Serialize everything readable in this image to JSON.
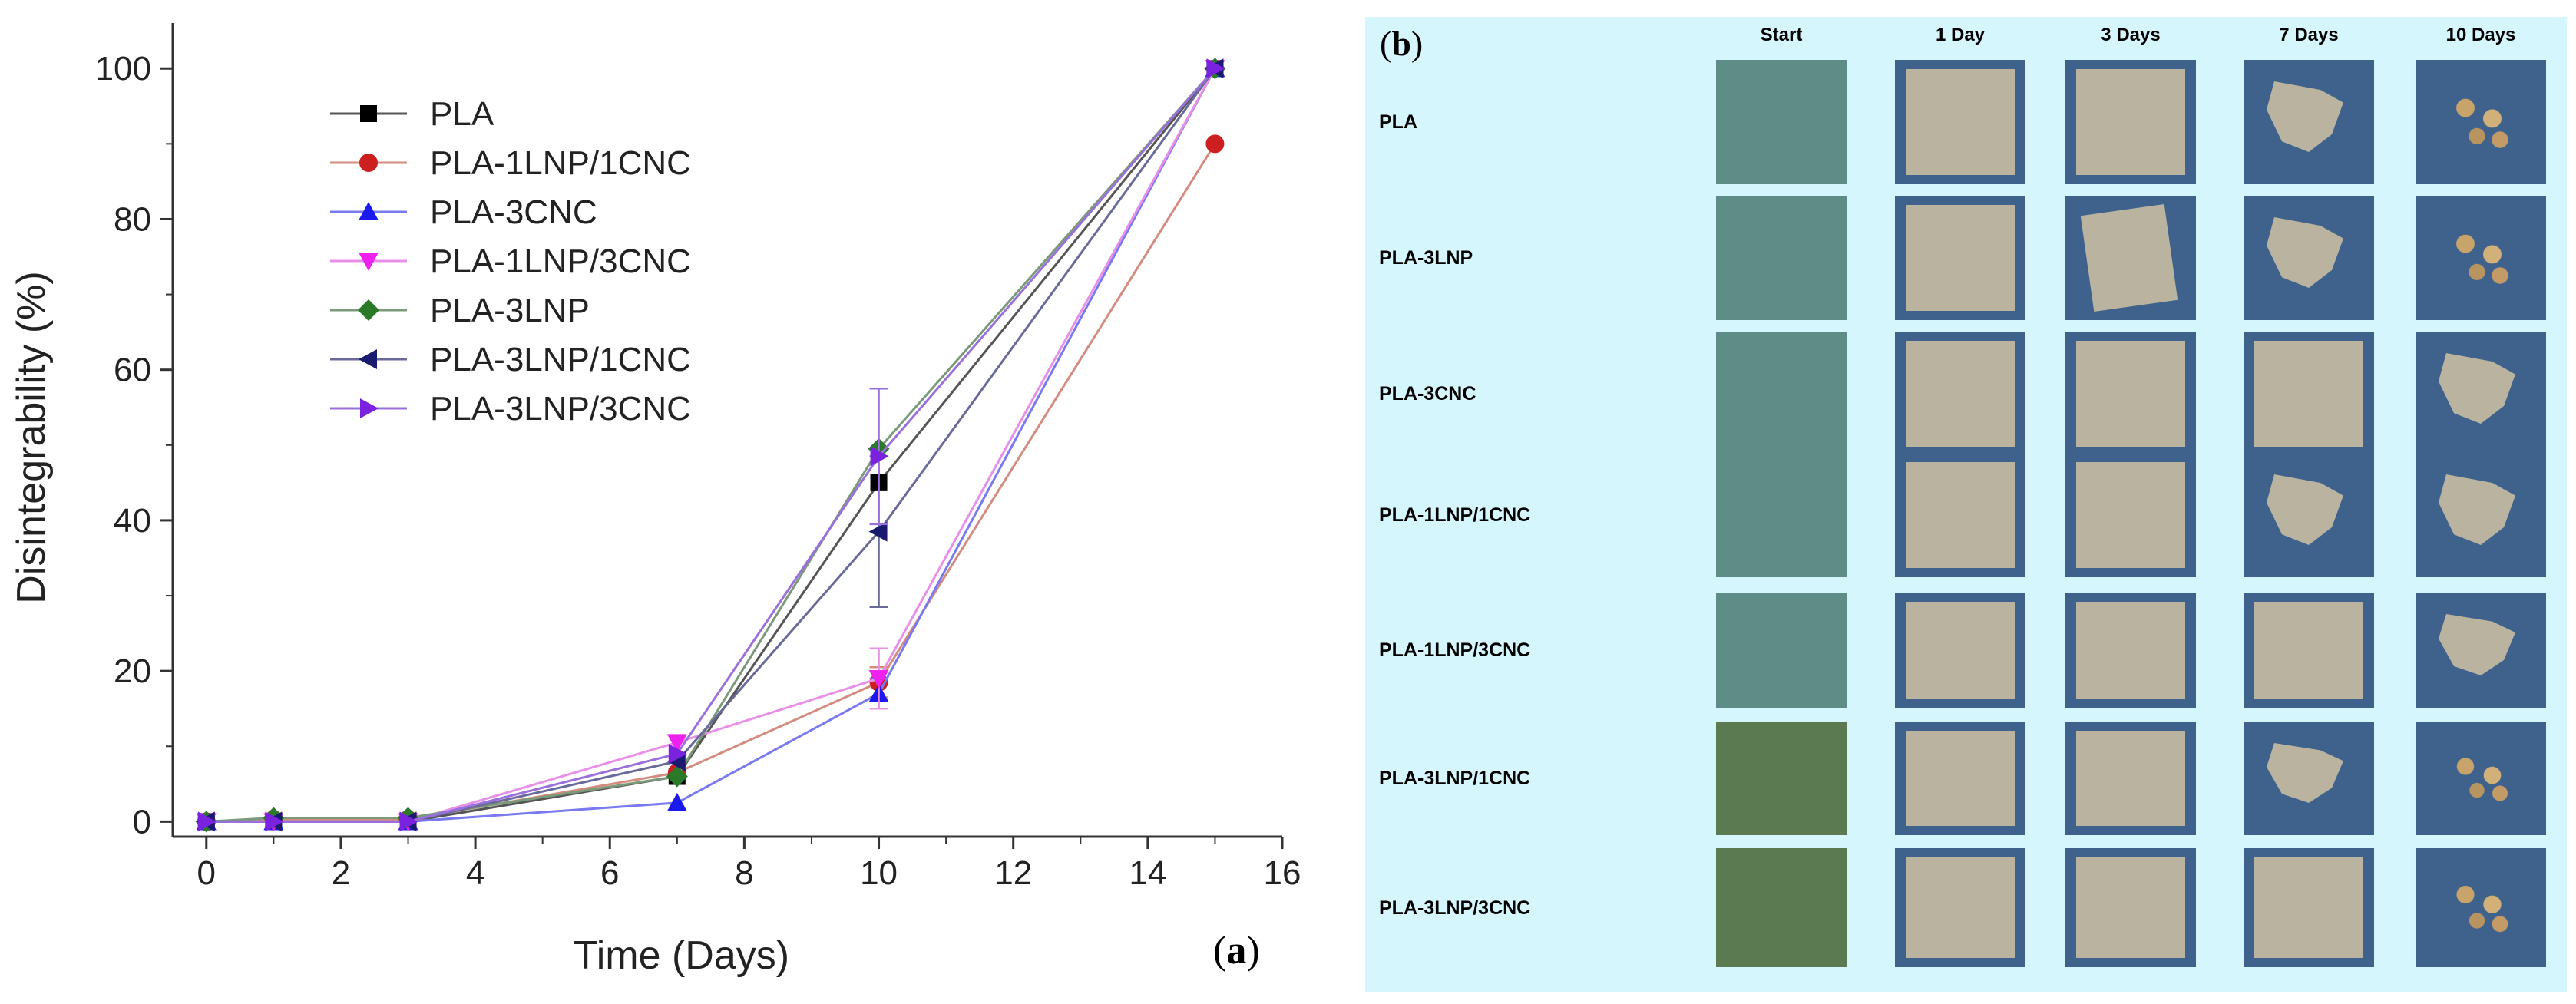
{
  "chart_data": {
    "type": "line",
    "panel_label": "a",
    "xlabel": "Time (Days)",
    "ylabel": "Disintegrability (%)",
    "xlim": [
      -0.5,
      16
    ],
    "ylim": [
      -2,
      104
    ],
    "xticks": [
      0,
      2,
      4,
      6,
      8,
      10,
      12,
      14,
      16
    ],
    "yticks": [
      0,
      20,
      40,
      60,
      80,
      100
    ],
    "legend_position": "top-left",
    "x": [
      0,
      1,
      3,
      7,
      10,
      15
    ],
    "series": [
      {
        "name": "PLA",
        "marker": "square",
        "color": "#000000",
        "line_color": "#555555",
        "values": [
          0,
          0,
          0,
          6,
          45,
          100
        ],
        "error": [
          0,
          0,
          0,
          0,
          0,
          0
        ]
      },
      {
        "name": "PLA-1LNP/1CNC",
        "marker": "circle",
        "color": "#cc2020",
        "line_color": "#d48c80",
        "values": [
          0,
          0.3,
          0.3,
          6.5,
          18.5,
          90
        ],
        "error": [
          0,
          0,
          0,
          0,
          2,
          0
        ]
      },
      {
        "name": "PLA-3CNC",
        "marker": "triangle-up",
        "color": "#1a1aee",
        "line_color": "#7a7af0",
        "values": [
          0,
          0,
          0,
          2.5,
          17,
          100
        ],
        "error": [
          0,
          0,
          0,
          0,
          2,
          0
        ]
      },
      {
        "name": "PLA-1LNP/3CNC",
        "marker": "triangle-down",
        "color": "#ee22ee",
        "line_color": "#e890e8",
        "values": [
          0,
          0,
          0,
          10.5,
          19,
          100
        ],
        "error": [
          0,
          0,
          0,
          0,
          4,
          0
        ]
      },
      {
        "name": "PLA-3LNP",
        "marker": "diamond",
        "color": "#2a7a2a",
        "line_color": "#7a9a7a",
        "values": [
          0,
          0.5,
          0.5,
          6,
          49.5,
          100
        ],
        "error": [
          0,
          0,
          0,
          0,
          0,
          0
        ]
      },
      {
        "name": "PLA-3LNP/1CNC",
        "marker": "triangle-left",
        "color": "#1a1a70",
        "line_color": "#6a6a9a",
        "values": [
          0,
          0,
          0,
          8,
          38.5,
          100
        ],
        "error": [
          0,
          0,
          0,
          0,
          10,
          0
        ]
      },
      {
        "name": "PLA-3LNP/3CNC",
        "marker": "triangle-right",
        "color": "#7a22dd",
        "line_color": "#9a70dd",
        "values": [
          0,
          0,
          0,
          9,
          48.5,
          100
        ],
        "error": [
          0,
          0,
          0,
          0,
          9,
          0
        ]
      }
    ]
  },
  "photo_panel": {
    "panel_label": "b",
    "columns": [
      "Start",
      "1 Day",
      "3 Days",
      "7 Days",
      "10 Days"
    ],
    "rows": [
      "PLA",
      "PLA-3LNP",
      "PLA-3CNC",
      "PLA-1LNP/1CNC",
      "PLA-1LNP/3CNC",
      "PLA-3LNP/1CNC",
      "PLA-3LNP/3CNC"
    ]
  },
  "colors": {
    "photo_panel_background": "#d6f6fd",
    "start_tile": "#5e8c86",
    "start_tile_lnp": "#5c7a52",
    "film_tile_background": "#3f628c",
    "film": "#b9b3a0"
  }
}
